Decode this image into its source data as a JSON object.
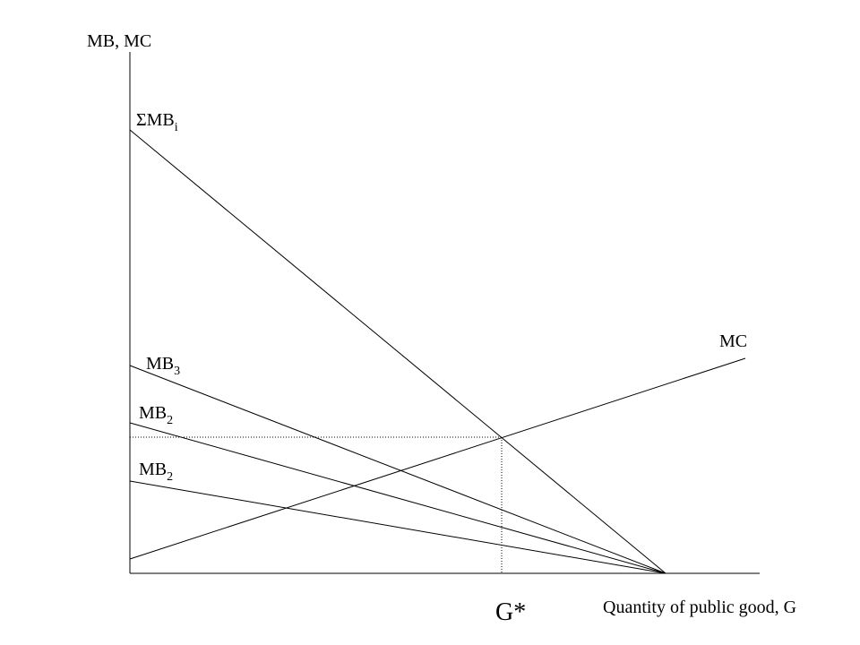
{
  "axis_labels": {
    "y": "MB, MC",
    "x": "Quantity of public good, G"
  },
  "curves": [
    {
      "label": "ΣMB",
      "subscript": "i"
    },
    {
      "label": "MC"
    },
    {
      "label": "MB",
      "subscript": "3"
    },
    {
      "label": "MB",
      "subscript": "2"
    },
    {
      "label": "MB",
      "subscript": "2"
    }
  ],
  "equilibrium_label": "G*"
}
